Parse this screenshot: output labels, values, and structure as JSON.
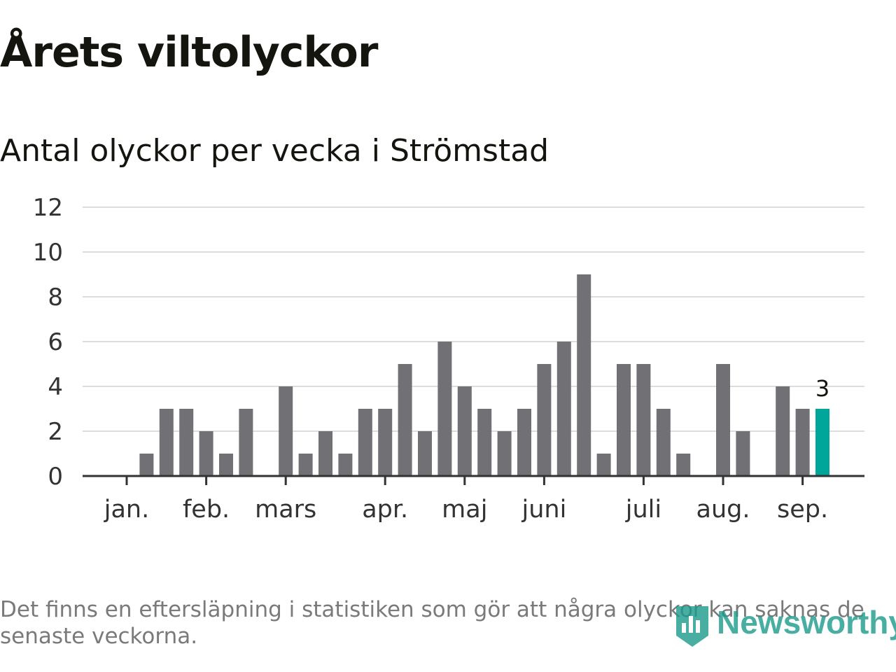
{
  "title": "Årets viltolyckor",
  "subtitle": "Antal olyckor per vecka i Strömstad",
  "footnote": "Det finns en eftersläpning i statistiken som gör att några olyckor kan saknas de senaste veckorna.",
  "logo": {
    "text": "Newsworthy",
    "color": "#1a9a8a"
  },
  "colors": {
    "bar": "#707075",
    "highlight": "#00a69a",
    "grid": "#dddddd",
    "axis": "#333333"
  },
  "chart_data": {
    "type": "bar",
    "y_ticks": [
      0,
      2,
      4,
      6,
      8,
      10,
      12
    ],
    "ylim": [
      0,
      12
    ],
    "grid": true,
    "x_month_ticks": [
      {
        "label": "jan.",
        "week": 1
      },
      {
        "label": "feb.",
        "week": 5
      },
      {
        "label": "mars",
        "week": 9
      },
      {
        "label": "apr.",
        "week": 14
      },
      {
        "label": "maj",
        "week": 18
      },
      {
        "label": "juni",
        "week": 22
      },
      {
        "label": "juli",
        "week": 27
      },
      {
        "label": "aug.",
        "week": 31
      },
      {
        "label": "sep.",
        "week": 35
      }
    ],
    "weeks": [
      1,
      2,
      3,
      4,
      5,
      6,
      7,
      8,
      9,
      10,
      11,
      12,
      13,
      14,
      15,
      16,
      17,
      18,
      19,
      20,
      21,
      22,
      23,
      24,
      25,
      26,
      27,
      28,
      29,
      30,
      31,
      32,
      33,
      34,
      35,
      36
    ],
    "values": [
      0,
      1,
      3,
      3,
      2,
      1,
      3,
      0,
      4,
      1,
      2,
      1,
      3,
      3,
      5,
      2,
      6,
      4,
      3,
      2,
      3,
      5,
      6,
      9,
      1,
      5,
      5,
      3,
      1,
      0,
      5,
      2,
      0,
      4,
      3,
      3
    ],
    "highlight_index": 35,
    "highlight_label": "3"
  }
}
